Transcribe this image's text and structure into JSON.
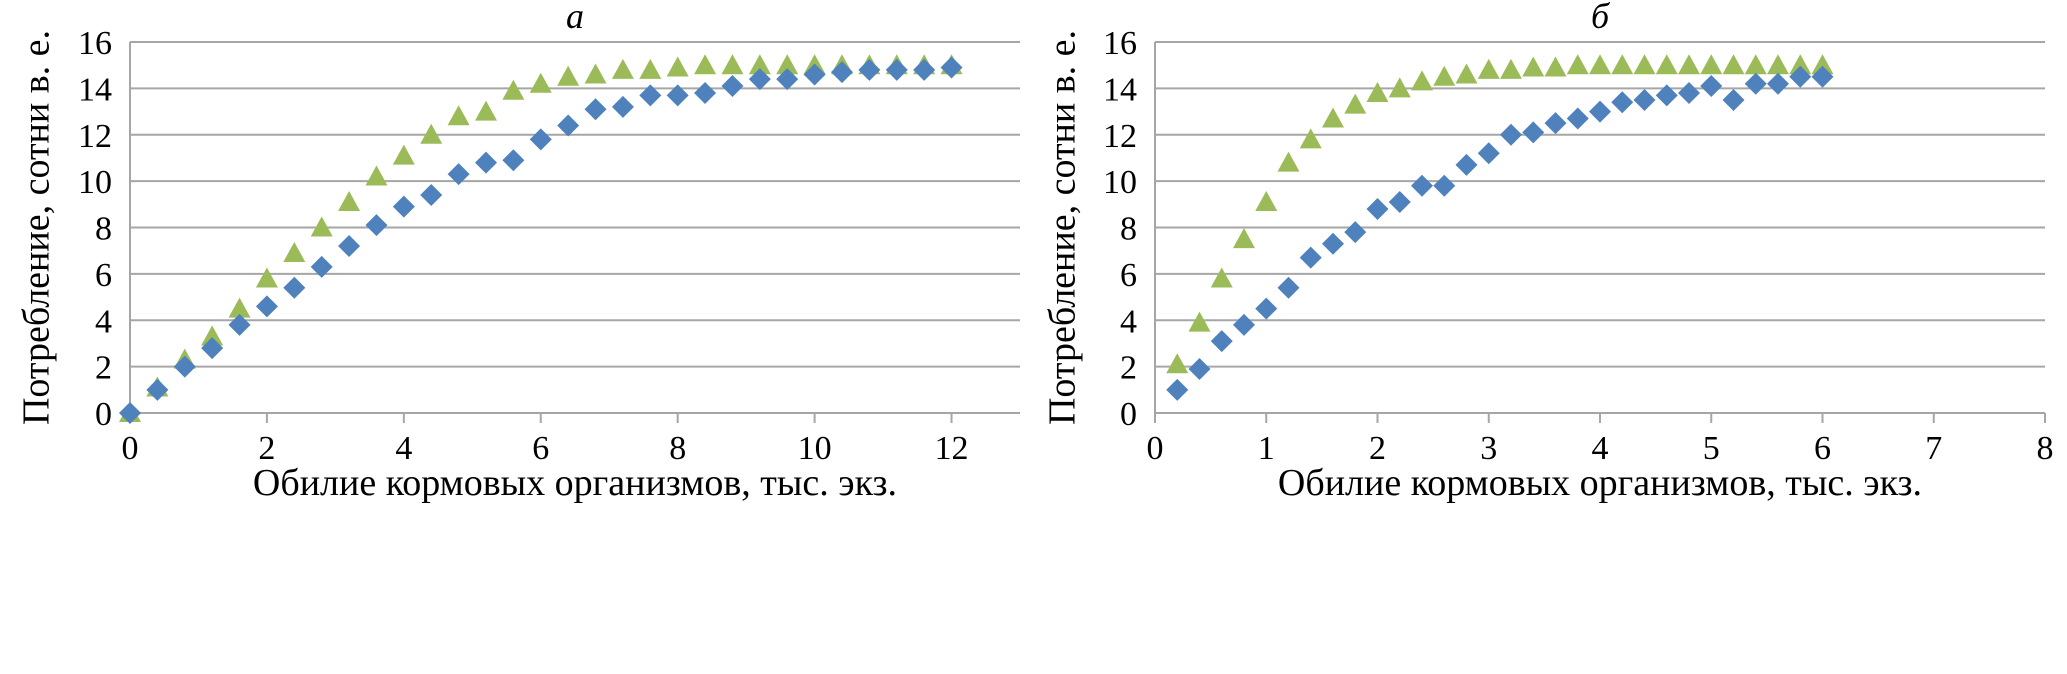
{
  "chart_data": [
    {
      "type": "scatter",
      "title": "а",
      "xlabel": "Обилие кормовых организмов, тыс. экз.",
      "ylabel": "Потребление, сотни в. е.",
      "xlim": [
        0,
        13
      ],
      "ylim": [
        0,
        16
      ],
      "xticks": [
        "0",
        "2",
        "4",
        "6",
        "8",
        "10",
        "12"
      ],
      "yticks": [
        "0",
        "2",
        "4",
        "6",
        "8",
        "10",
        "12",
        "14",
        "16"
      ],
      "grid": "horizontal",
      "series": [
        {
          "marker": "triangle",
          "color": "#9bbb59",
          "points": [
            [
              0,
              0
            ],
            [
              0.4,
              1.1
            ],
            [
              0.8,
              2.3
            ],
            [
              1.2,
              3.3
            ],
            [
              1.6,
              4.5
            ],
            [
              2.0,
              5.8
            ],
            [
              2.4,
              6.9
            ],
            [
              2.8,
              8.0
            ],
            [
              3.2,
              9.1
            ],
            [
              3.6,
              10.2
            ],
            [
              4.0,
              11.1
            ],
            [
              4.4,
              12.0
            ],
            [
              4.8,
              12.8
            ],
            [
              5.2,
              13.0
            ],
            [
              5.6,
              13.9
            ],
            [
              6.0,
              14.2
            ],
            [
              6.4,
              14.5
            ],
            [
              6.8,
              14.6
            ],
            [
              7.2,
              14.8
            ],
            [
              7.6,
              14.8
            ],
            [
              8.0,
              14.9
            ],
            [
              8.4,
              15.0
            ],
            [
              8.8,
              15.0
            ],
            [
              9.2,
              15.0
            ],
            [
              9.6,
              15.0
            ],
            [
              10.0,
              15.0
            ],
            [
              10.4,
              15.0
            ],
            [
              10.8,
              15.0
            ],
            [
              11.2,
              15.0
            ],
            [
              11.6,
              15.0
            ],
            [
              12.0,
              15.0
            ]
          ]
        },
        {
          "marker": "diamond",
          "color": "#4f81bd",
          "points": [
            [
              0,
              0
            ],
            [
              0.4,
              1.0
            ],
            [
              0.8,
              2.0
            ],
            [
              1.2,
              2.8
            ],
            [
              1.6,
              3.8
            ],
            [
              2.0,
              4.6
            ],
            [
              2.4,
              5.4
            ],
            [
              2.8,
              6.3
            ],
            [
              3.2,
              7.2
            ],
            [
              3.6,
              8.1
            ],
            [
              4.0,
              8.9
            ],
            [
              4.4,
              9.4
            ],
            [
              4.8,
              10.3
            ],
            [
              5.2,
              10.8
            ],
            [
              5.6,
              10.9
            ],
            [
              6.0,
              11.8
            ],
            [
              6.4,
              12.4
            ],
            [
              6.8,
              13.1
            ],
            [
              7.2,
              13.2
            ],
            [
              7.6,
              13.7
            ],
            [
              8.0,
              13.7
            ],
            [
              8.4,
              13.8
            ],
            [
              8.8,
              14.1
            ],
            [
              9.2,
              14.4
            ],
            [
              9.6,
              14.4
            ],
            [
              10.0,
              14.6
            ],
            [
              10.4,
              14.7
            ],
            [
              10.8,
              14.8
            ],
            [
              11.2,
              14.8
            ],
            [
              11.6,
              14.8
            ],
            [
              12.0,
              14.9
            ]
          ]
        }
      ]
    },
    {
      "type": "scatter",
      "title": "б",
      "xlabel": "Обилие кормовых организмов, тыс. экз.",
      "ylabel": "Потребление, сотни в. е.",
      "xlim": [
        0,
        8
      ],
      "ylim": [
        0,
        16
      ],
      "xticks": [
        "0",
        "1",
        "2",
        "3",
        "4",
        "5",
        "6",
        "7",
        "8"
      ],
      "yticks": [
        "0",
        "2",
        "4",
        "6",
        "8",
        "10",
        "12",
        "14",
        "16"
      ],
      "grid": "horizontal",
      "series": [
        {
          "marker": "triangle",
          "color": "#9bbb59",
          "points": [
            [
              0.2,
              2.1
            ],
            [
              0.4,
              3.9
            ],
            [
              0.6,
              5.8
            ],
            [
              0.8,
              7.5
            ],
            [
              1.0,
              9.1
            ],
            [
              1.2,
              10.8
            ],
            [
              1.4,
              11.8
            ],
            [
              1.6,
              12.7
            ],
            [
              1.8,
              13.3
            ],
            [
              2.0,
              13.8
            ],
            [
              2.2,
              14.0
            ],
            [
              2.4,
              14.3
            ],
            [
              2.6,
              14.5
            ],
            [
              2.8,
              14.6
            ],
            [
              3.0,
              14.8
            ],
            [
              3.2,
              14.8
            ],
            [
              3.4,
              14.9
            ],
            [
              3.6,
              14.9
            ],
            [
              3.8,
              15.0
            ],
            [
              4.0,
              15.0
            ],
            [
              4.2,
              15.0
            ],
            [
              4.4,
              15.0
            ],
            [
              4.6,
              15.0
            ],
            [
              4.8,
              15.0
            ],
            [
              5.0,
              15.0
            ],
            [
              5.2,
              15.0
            ],
            [
              5.4,
              15.0
            ],
            [
              5.6,
              15.0
            ],
            [
              5.8,
              15.0
            ],
            [
              6.0,
              15.0
            ]
          ]
        },
        {
          "marker": "diamond",
          "color": "#4f81bd",
          "points": [
            [
              0.2,
              1.0
            ],
            [
              0.4,
              1.9
            ],
            [
              0.6,
              3.1
            ],
            [
              0.8,
              3.8
            ],
            [
              1.0,
              4.5
            ],
            [
              1.2,
              5.4
            ],
            [
              1.4,
              6.7
            ],
            [
              1.6,
              7.3
            ],
            [
              1.8,
              7.8
            ],
            [
              2.0,
              8.8
            ],
            [
              2.2,
              9.1
            ],
            [
              2.4,
              9.8
            ],
            [
              2.6,
              9.8
            ],
            [
              2.8,
              10.7
            ],
            [
              3.0,
              11.2
            ],
            [
              3.2,
              12.0
            ],
            [
              3.4,
              12.1
            ],
            [
              3.6,
              12.5
            ],
            [
              3.8,
              12.7
            ],
            [
              4.0,
              13.0
            ],
            [
              4.2,
              13.4
            ],
            [
              4.4,
              13.5
            ],
            [
              4.6,
              13.7
            ],
            [
              4.8,
              13.8
            ],
            [
              5.0,
              14.1
            ],
            [
              5.2,
              13.5
            ],
            [
              5.4,
              14.2
            ],
            [
              5.6,
              14.2
            ],
            [
              5.8,
              14.5
            ],
            [
              6.0,
              14.5
            ]
          ]
        }
      ]
    }
  ]
}
